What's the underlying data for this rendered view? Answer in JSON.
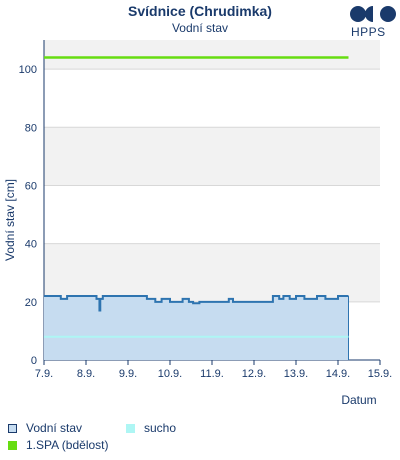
{
  "header": {
    "title": "Svídnice (Chrudimka)",
    "subtitle": "Vodní stav",
    "logo_text": "HPPS"
  },
  "colors": {
    "water_level": "#2e74b0",
    "water_fill": "#c6dcf0",
    "sucho": "#aef6f4",
    "spa1": "#66dd11",
    "band": "#f2f2f2",
    "text": "#1a3a6b"
  },
  "legend": {
    "water_level": "Vodní stav",
    "sucho": "sucho",
    "spa1": "1.SPA (bdělost)"
  },
  "chart_data": {
    "type": "area",
    "title": "Svídnice (Chrudimka)",
    "subtitle": "Vodní stav",
    "xlabel": "Datum",
    "ylabel": "Vodní stav [cm]",
    "x_ticks": [
      "7.9.",
      "8.9.",
      "9.9.",
      "10.9.",
      "11.9.",
      "12.9.",
      "13.9.",
      "14.9.",
      "15.9."
    ],
    "y_ticks": [
      0,
      20,
      40,
      60,
      80,
      100
    ],
    "xlim": [
      7,
      15
    ],
    "ylim": [
      0,
      110
    ],
    "grid": "alternating horizontal bands",
    "legend_position": "bottom",
    "series": [
      {
        "name": "Vodní stav",
        "type": "area",
        "points": [
          [
            7.0,
            22
          ],
          [
            7.3,
            22
          ],
          [
            7.4,
            21
          ],
          [
            7.55,
            22
          ],
          [
            7.9,
            22
          ],
          [
            8.2,
            22
          ],
          [
            8.25,
            21
          ],
          [
            8.3,
            21
          ],
          [
            8.32,
            17
          ],
          [
            8.34,
            21
          ],
          [
            8.4,
            22
          ],
          [
            8.7,
            22
          ],
          [
            8.9,
            22
          ],
          [
            9.3,
            22
          ],
          [
            9.45,
            21
          ],
          [
            9.55,
            21
          ],
          [
            9.65,
            20
          ],
          [
            9.8,
            21
          ],
          [
            9.9,
            21
          ],
          [
            10.0,
            20
          ],
          [
            10.2,
            20
          ],
          [
            10.3,
            21
          ],
          [
            10.45,
            20
          ],
          [
            10.55,
            19.5
          ],
          [
            10.7,
            20
          ],
          [
            11.0,
            20
          ],
          [
            11.3,
            20
          ],
          [
            11.4,
            21
          ],
          [
            11.5,
            20
          ],
          [
            11.7,
            20
          ],
          [
            12.0,
            20
          ],
          [
            12.3,
            20
          ],
          [
            12.45,
            22
          ],
          [
            12.6,
            21
          ],
          [
            12.7,
            22
          ],
          [
            12.85,
            21
          ],
          [
            13.0,
            22
          ],
          [
            13.2,
            21
          ],
          [
            13.4,
            21
          ],
          [
            13.5,
            22
          ],
          [
            13.7,
            21
          ],
          [
            13.9,
            21
          ],
          [
            14.0,
            22
          ],
          [
            14.25,
            22
          ]
        ]
      },
      {
        "name": "sucho",
        "type": "line",
        "points": [
          [
            7.0,
            8
          ],
          [
            14.25,
            8
          ]
        ]
      },
      {
        "name": "1.SPA (bdělost)",
        "type": "line",
        "points": [
          [
            7.0,
            104
          ],
          [
            14.25,
            104
          ]
        ]
      }
    ]
  }
}
